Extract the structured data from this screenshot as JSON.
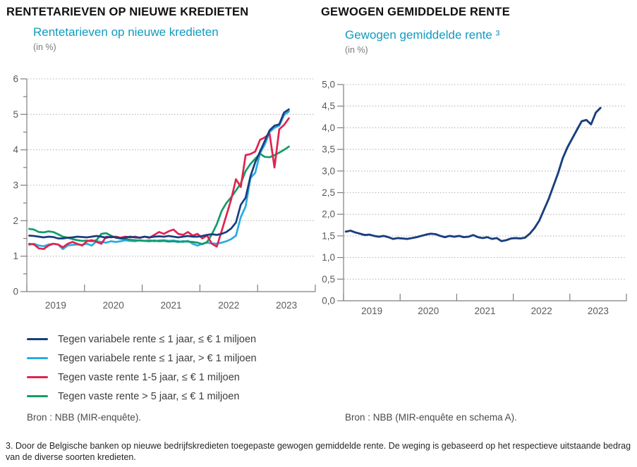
{
  "footnote": "3. Door de Belgische banken op nieuwe bedrijfskredieten toegepaste gewogen gemiddelde rente. De weging is gebaseerd op het respectieve uitstaande bedrag van de diverse soorten kredieten.",
  "colors": {
    "navy": "#1a3e7d",
    "cyan": "#29abe2",
    "red": "#e0234f",
    "green": "#149c68",
    "subtitle_teal": "#119ac0",
    "axis_gray": "#7f7f7f",
    "grid_gray": "#b0b0b0"
  },
  "chart_data": [
    {
      "type": "line",
      "title": "RENTETARIEVEN OP NIEUWE KREDIETEN",
      "subtitle": "Rentetarieven op nieuwe kredieten",
      "unit_label": "(in %)",
      "source": "Bron : NBB (MIR-enquête).",
      "x_monthly_start": "2019-01",
      "x_monthly_end": "2023-07",
      "categories_x_years": [
        "2019",
        "2020",
        "2021",
        "2022",
        "2023"
      ],
      "ylim": [
        0,
        6
      ],
      "ytick_values": [
        0,
        1,
        2,
        3,
        4,
        5,
        6
      ],
      "ytick_labels": [
        "0",
        "1",
        "2",
        "3",
        "4",
        "5",
        "6"
      ],
      "grid": "dotted-horizontal",
      "legend_position": "below-left",
      "series": [
        {
          "name": "Tegen variabele rente ≤ 1 jaar, ≤ € 1 miljoen",
          "color": "#1a3e7d",
          "values": [
            1.58,
            1.57,
            1.55,
            1.53,
            1.55,
            1.54,
            1.5,
            1.5,
            1.52,
            1.53,
            1.55,
            1.54,
            1.53,
            1.55,
            1.57,
            1.55,
            1.52,
            1.55,
            1.53,
            1.5,
            1.52,
            1.55,
            1.53,
            1.52,
            1.55,
            1.53,
            1.55,
            1.56,
            1.55,
            1.57,
            1.55,
            1.53,
            1.55,
            1.57,
            1.55,
            1.55,
            1.57,
            1.6,
            1.62,
            1.6,
            1.63,
            1.68,
            1.78,
            1.95,
            2.45,
            2.65,
            3.25,
            3.65,
            3.95,
            4.25,
            4.55,
            4.68,
            4.72,
            5.05,
            5.14
          ]
        },
        {
          "name": "Tegen variabele rente ≤ 1 jaar, > € 1 miljoen",
          "color": "#29abe2",
          "values": [
            1.32,
            1.35,
            1.3,
            1.28,
            1.33,
            1.35,
            1.33,
            1.2,
            1.3,
            1.32,
            1.33,
            1.32,
            1.35,
            1.3,
            1.42,
            1.4,
            1.38,
            1.42,
            1.4,
            1.42,
            1.45,
            1.43,
            1.42,
            1.45,
            1.43,
            1.45,
            1.42,
            1.44,
            1.45,
            1.43,
            1.44,
            1.42,
            1.4,
            1.43,
            1.35,
            1.3,
            1.35,
            1.38,
            1.36,
            1.35,
            1.38,
            1.42,
            1.48,
            1.58,
            2.1,
            2.4,
            3.2,
            3.35,
            3.9,
            4.15,
            4.5,
            4.62,
            4.68,
            4.98,
            5.08
          ]
        },
        {
          "name": "Tegen vaste rente 1-5 jaar, ≤ € 1 miljoen",
          "color": "#e0234f",
          "values": [
            1.35,
            1.33,
            1.22,
            1.2,
            1.3,
            1.35,
            1.33,
            1.25,
            1.35,
            1.4,
            1.35,
            1.3,
            1.42,
            1.45,
            1.4,
            1.35,
            1.55,
            1.53,
            1.55,
            1.52,
            1.55,
            1.53,
            1.55,
            1.52,
            1.55,
            1.52,
            1.6,
            1.68,
            1.63,
            1.7,
            1.75,
            1.63,
            1.6,
            1.68,
            1.58,
            1.63,
            1.5,
            1.58,
            1.35,
            1.27,
            1.7,
            2.15,
            2.6,
            3.17,
            2.95,
            3.85,
            3.88,
            3.95,
            4.28,
            4.35,
            4.45,
            3.5,
            4.58,
            4.7,
            4.89
          ]
        },
        {
          "name": "Tegen vaste rente > 5 jaar, ≤ € 1 miljoen",
          "color": "#149c68",
          "values": [
            1.77,
            1.75,
            1.68,
            1.67,
            1.7,
            1.68,
            1.62,
            1.55,
            1.52,
            1.48,
            1.45,
            1.43,
            1.44,
            1.42,
            1.45,
            1.63,
            1.65,
            1.58,
            1.52,
            1.5,
            1.48,
            1.46,
            1.45,
            1.44,
            1.43,
            1.42,
            1.44,
            1.42,
            1.43,
            1.41,
            1.42,
            1.4,
            1.42,
            1.41,
            1.4,
            1.38,
            1.34,
            1.4,
            1.62,
            1.9,
            2.27,
            2.5,
            2.66,
            2.85,
            3.05,
            3.4,
            3.6,
            3.75,
            3.89,
            3.8,
            3.79,
            3.85,
            3.92,
            4.0,
            4.09
          ]
        }
      ]
    },
    {
      "type": "line",
      "title": "GEWOGEN GEMIDDELDE RENTE",
      "subtitle": "Gewogen gemiddelde rente ³",
      "unit_label": "(in %)",
      "source": "Bron : NBB (MIR-enquête en schema A).",
      "x_monthly_start": "2019-01",
      "x_monthly_end": "2023-07",
      "categories_x_years": [
        "2019",
        "2020",
        "2021",
        "2022",
        "2023"
      ],
      "ylim": [
        0,
        5
      ],
      "ytick_values": [
        0,
        0.5,
        1,
        1.5,
        2,
        2.5,
        3,
        3.5,
        4,
        4.5,
        5
      ],
      "ytick_labels": [
        "0,0",
        "0,5",
        "1,0",
        "1,5",
        "2,0",
        "2,5",
        "3,0",
        "3,5",
        "4,0",
        "4,5",
        "5,0"
      ],
      "grid": "dotted-horizontal",
      "legend_position": "none",
      "series": [
        {
          "name": "Gewogen gemiddelde rente",
          "color": "#1a3e7d",
          "values": [
            1.6,
            1.62,
            1.58,
            1.55,
            1.52,
            1.53,
            1.5,
            1.48,
            1.5,
            1.47,
            1.43,
            1.45,
            1.44,
            1.43,
            1.45,
            1.47,
            1.5,
            1.53,
            1.55,
            1.54,
            1.5,
            1.47,
            1.5,
            1.48,
            1.5,
            1.47,
            1.48,
            1.52,
            1.47,
            1.45,
            1.47,
            1.43,
            1.45,
            1.38,
            1.4,
            1.44,
            1.45,
            1.44,
            1.46,
            1.55,
            1.68,
            1.85,
            2.1,
            2.35,
            2.65,
            2.95,
            3.3,
            3.55,
            3.75,
            3.95,
            4.15,
            4.18,
            4.08,
            4.35,
            4.46
          ]
        }
      ]
    }
  ]
}
